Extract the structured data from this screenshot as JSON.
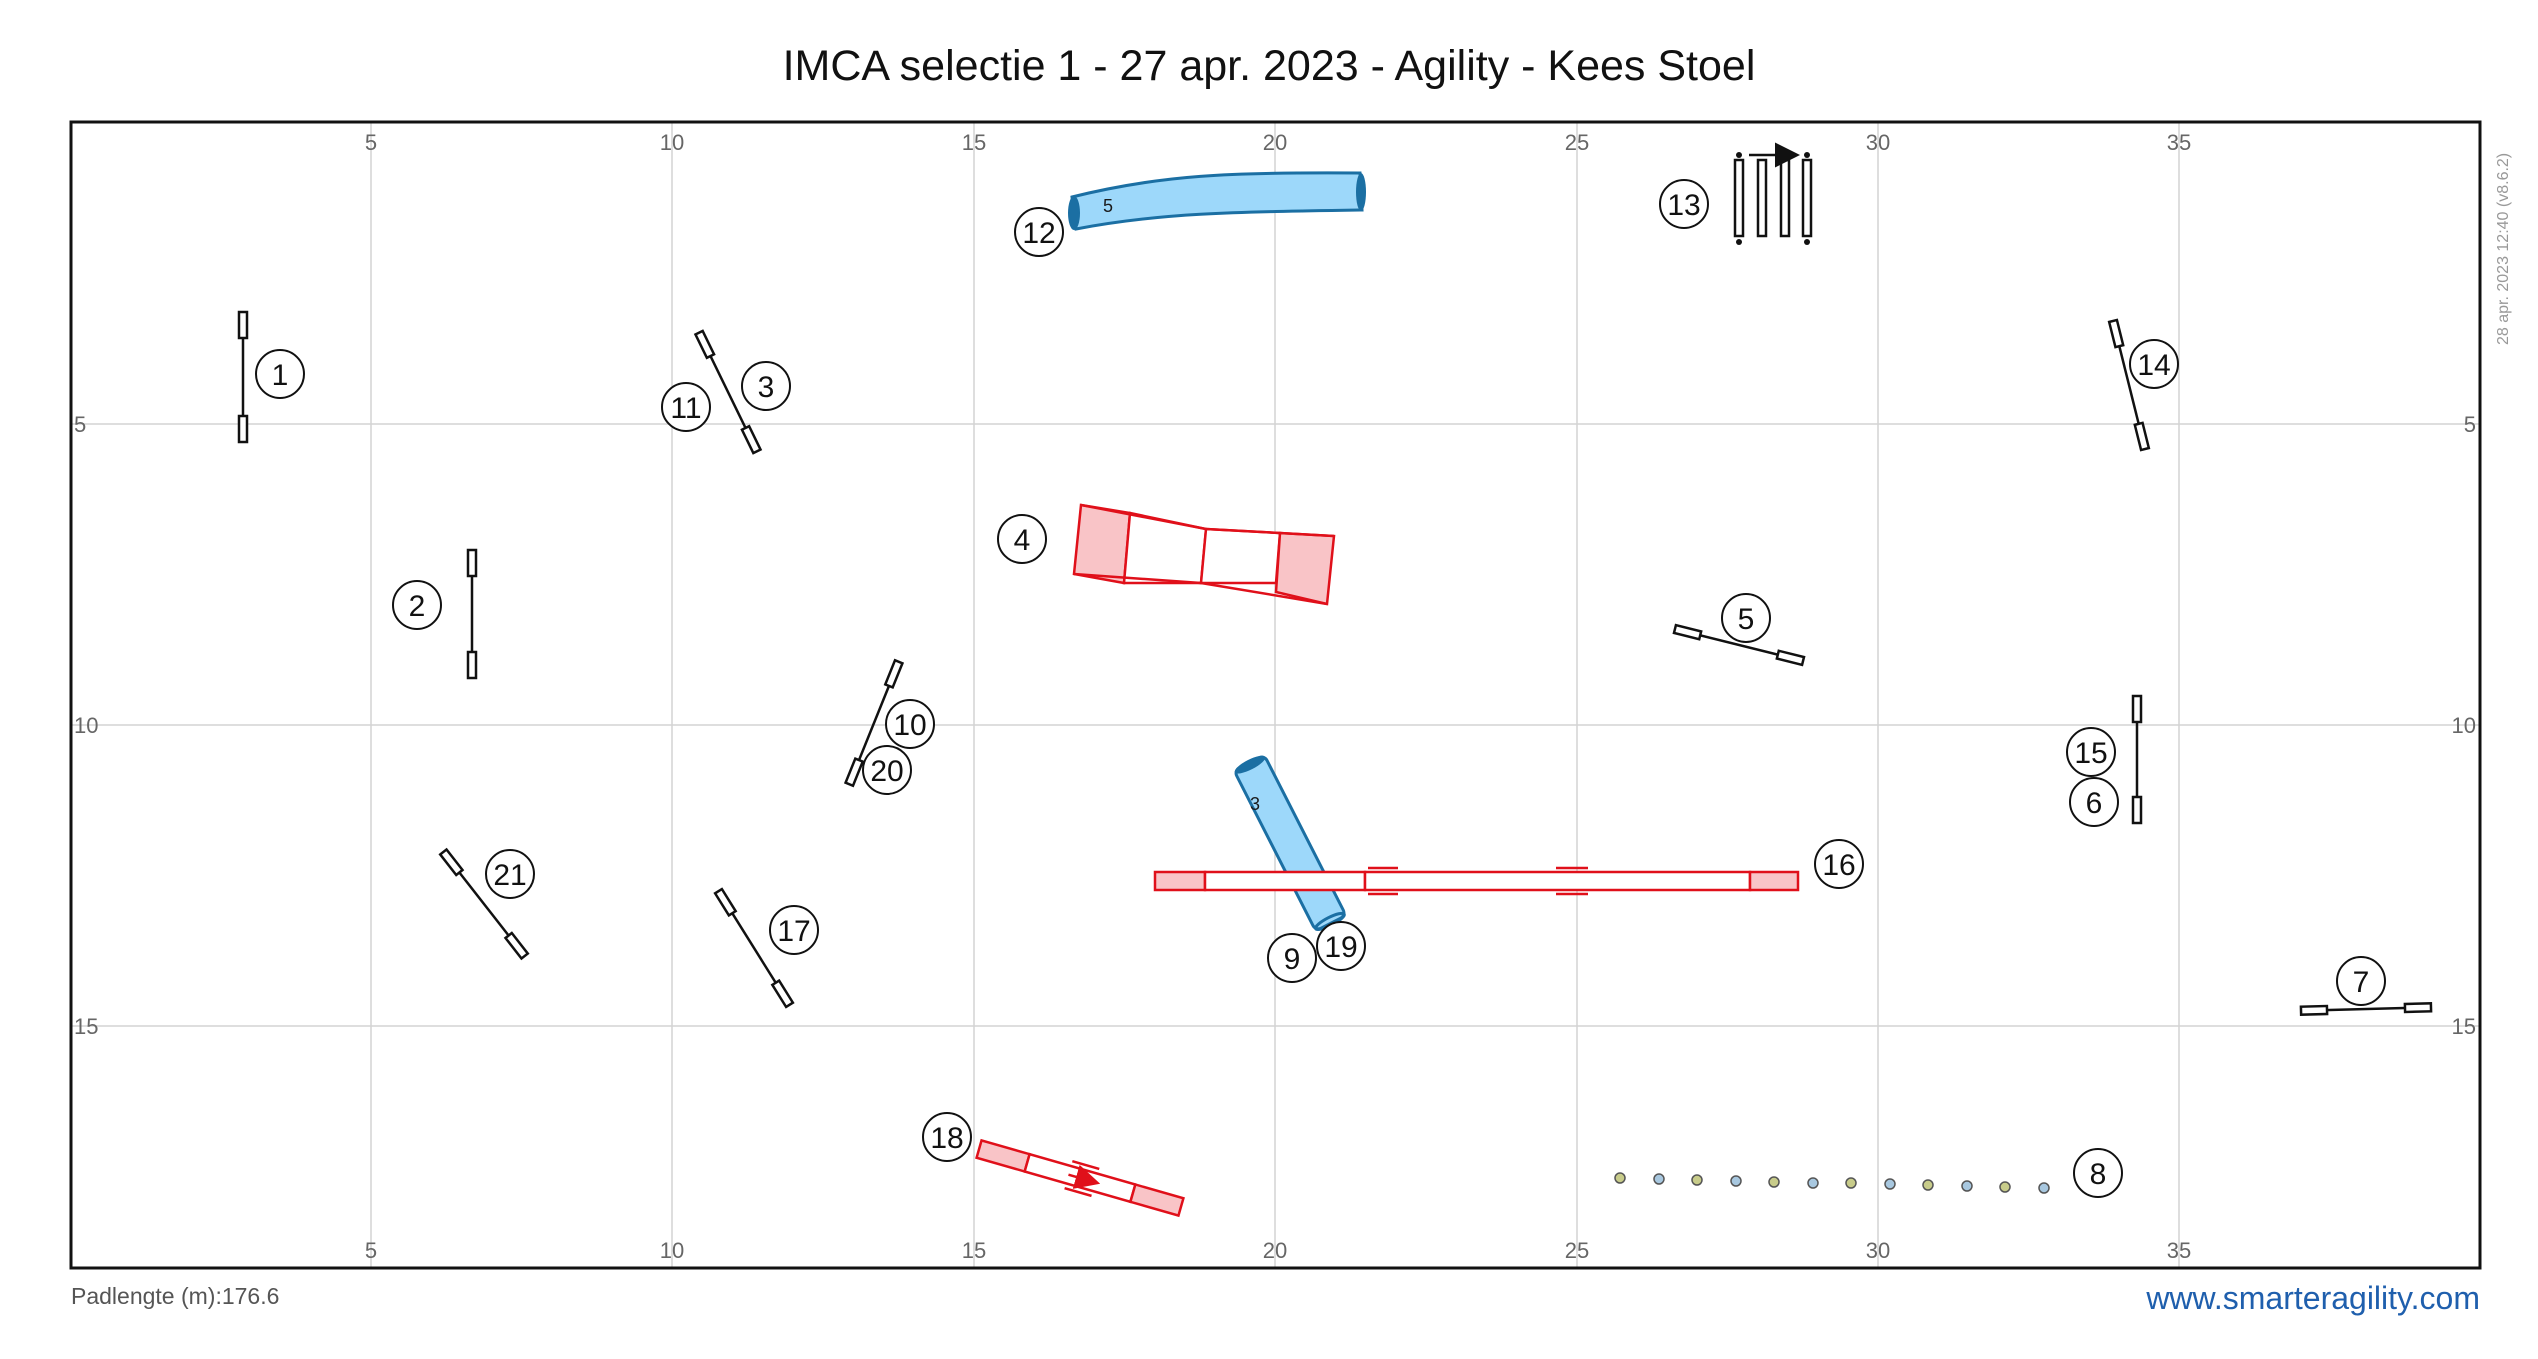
{
  "title": "IMCA selectie 1 - 27 apr. 2023 - Agility - Kees Stoel",
  "footer": {
    "path_length": "Padlengte (m):176.6",
    "website": "www.smarteragility.com",
    "timestamp": "28 apr. 2023 12:40  (v8.6.2)"
  },
  "ring": {
    "width_m": 40,
    "height_m": 19,
    "x_ticks": [
      "5",
      "10",
      "15",
      "20",
      "25",
      "30",
      "35"
    ],
    "y_ticks": [
      "5",
      "10",
      "15"
    ]
  },
  "colors": {
    "tunnel_fill": "#9dd8fa",
    "tunnel_stroke": "#1b6fa3",
    "contact_stroke": "#e0101a",
    "contact_zone": "#f9c4c7",
    "grid": "#d4d4d4",
    "frame": "#111111",
    "link": "#1f5fad"
  },
  "equipment": {
    "tunnels": [
      {
        "label": "5",
        "desc": "curved tunnel"
      },
      {
        "label": "3",
        "desc": "straight tunnel"
      }
    ],
    "contacts": [
      "A-frame",
      "dog walk",
      "seesaw"
    ],
    "weave_poles": 12,
    "jumps": 11
  },
  "numbers": [
    "1",
    "2",
    "3",
    "4",
    "5",
    "6",
    "7",
    "8",
    "9",
    "10",
    "11",
    "12",
    "13",
    "14",
    "15",
    "16",
    "17",
    "18",
    "19",
    "20",
    "21"
  ]
}
